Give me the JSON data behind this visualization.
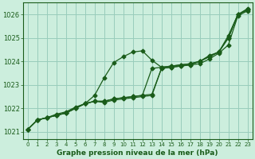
{
  "title": "Graphe pression niveau de la mer (hPa)",
  "bg_color": "#cceedd",
  "grid_color": "#99ccbb",
  "line_color": "#1a5c1a",
  "xlim": [
    -0.5,
    23.5
  ],
  "ylim": [
    1020.7,
    1026.5
  ],
  "yticks": [
    1021,
    1022,
    1023,
    1024,
    1025,
    1026
  ],
  "xticks": [
    0,
    1,
    2,
    3,
    4,
    5,
    6,
    7,
    8,
    9,
    10,
    11,
    12,
    13,
    14,
    15,
    16,
    17,
    18,
    19,
    20,
    21,
    22,
    23
  ],
  "series": [
    [
      1021.1,
      1021.5,
      1021.6,
      1021.7,
      1021.8,
      1022.0,
      1022.2,
      1022.3,
      1022.25,
      1022.35,
      1022.4,
      1022.45,
      1022.5,
      1022.55,
      1023.7,
      1023.75,
      1023.8,
      1023.85,
      1023.9,
      1024.1,
      1024.35,
      1024.7,
      1025.95,
      1026.15
    ],
    [
      1021.1,
      1021.5,
      1021.6,
      1021.7,
      1021.8,
      1022.0,
      1022.2,
      1022.3,
      1022.3,
      1022.4,
      1022.45,
      1022.5,
      1022.55,
      1023.7,
      1023.75,
      1023.8,
      1023.85,
      1023.9,
      1024.0,
      1024.2,
      1024.4,
      1025.0,
      1026.0,
      1026.2
    ],
    [
      1021.1,
      1021.5,
      1021.6,
      1021.75,
      1021.85,
      1022.05,
      1022.2,
      1022.55,
      1023.3,
      1023.95,
      1024.2,
      1024.4,
      1024.45,
      1024.05,
      1023.75,
      1023.8,
      1023.85,
      1023.9,
      1024.0,
      1024.25,
      1024.4,
      1025.1,
      1026.0,
      1026.25
    ],
    [
      1021.1,
      1021.5,
      1021.6,
      1021.7,
      1021.8,
      1022.0,
      1022.2,
      1022.3,
      1022.3,
      1022.4,
      1022.45,
      1022.5,
      1022.55,
      1022.6,
      1023.7,
      1023.75,
      1023.8,
      1023.85,
      1024.0,
      1024.2,
      1024.4,
      1025.0,
      1026.0,
      1026.2
    ]
  ]
}
